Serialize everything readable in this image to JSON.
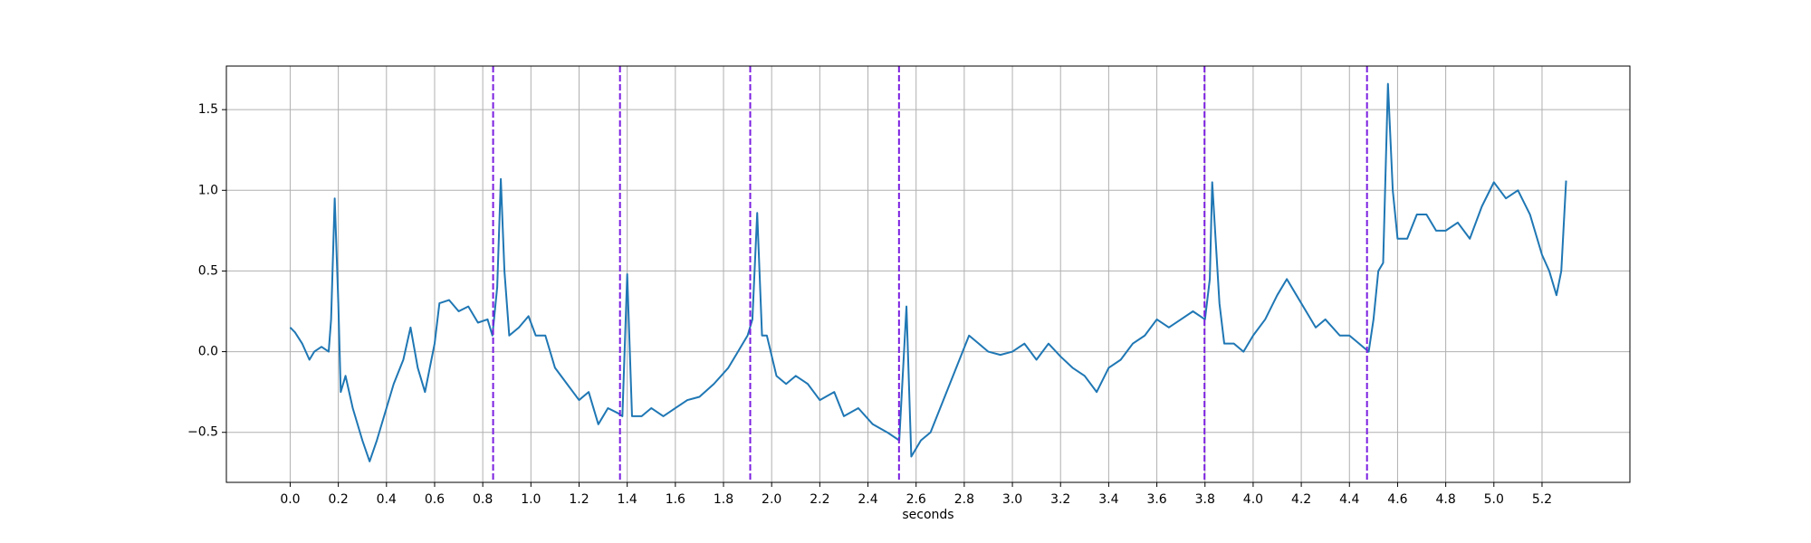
{
  "chart_data": {
    "type": "line",
    "xlabel": "seconds",
    "x": [
      0.0,
      0.02,
      0.05,
      0.08,
      0.1,
      0.13,
      0.16,
      0.17,
      0.185,
      0.2,
      0.21,
      0.23,
      0.26,
      0.3,
      0.33,
      0.36,
      0.4,
      0.43,
      0.47,
      0.5,
      0.53,
      0.56,
      0.6,
      0.62,
      0.66,
      0.7,
      0.74,
      0.78,
      0.82,
      0.84,
      0.86,
      0.875,
      0.89,
      0.91,
      0.95,
      0.99,
      1.02,
      1.06,
      1.1,
      1.15,
      1.2,
      1.24,
      1.28,
      1.32,
      1.36,
      1.38,
      1.4,
      1.42,
      1.46,
      1.5,
      1.55,
      1.6,
      1.65,
      1.7,
      1.76,
      1.82,
      1.86,
      1.9,
      1.92,
      1.94,
      1.96,
      1.98,
      2.02,
      2.06,
      2.1,
      2.15,
      2.2,
      2.26,
      2.3,
      2.36,
      2.42,
      2.48,
      2.53,
      2.56,
      2.58,
      2.62,
      2.66,
      2.7,
      2.74,
      2.78,
      2.82,
      2.86,
      2.9,
      2.95,
      3.0,
      3.05,
      3.1,
      3.15,
      3.2,
      3.25,
      3.3,
      3.35,
      3.4,
      3.45,
      3.5,
      3.55,
      3.6,
      3.65,
      3.7,
      3.75,
      3.8,
      3.82,
      3.83,
      3.86,
      3.88,
      3.92,
      3.96,
      4.0,
      4.05,
      4.1,
      4.14,
      4.18,
      4.22,
      4.26,
      4.3,
      4.36,
      4.4,
      4.44,
      4.48,
      4.5,
      4.52,
      4.54,
      4.56,
      4.58,
      4.6,
      4.64,
      4.68,
      4.72,
      4.76,
      4.8,
      4.85,
      4.9,
      4.95,
      5.0,
      5.05,
      5.1,
      5.15,
      5.2,
      5.23,
      5.26,
      5.28,
      5.3
    ],
    "series": [
      {
        "color": "#1f77b4",
        "values": [
          0.15,
          0.12,
          0.05,
          -0.05,
          0.0,
          0.03,
          0.0,
          0.2,
          0.95,
          0.3,
          -0.25,
          -0.15,
          -0.35,
          -0.55,
          -0.68,
          -0.55,
          -0.35,
          -0.2,
          -0.05,
          0.15,
          -0.1,
          -0.25,
          0.05,
          0.3,
          0.32,
          0.25,
          0.28,
          0.18,
          0.2,
          0.1,
          0.4,
          1.07,
          0.5,
          0.1,
          0.15,
          0.22,
          0.1,
          0.1,
          -0.1,
          -0.2,
          -0.3,
          -0.25,
          -0.45,
          -0.35,
          -0.38,
          -0.4,
          0.48,
          -0.4,
          -0.4,
          -0.35,
          -0.4,
          -0.35,
          -0.3,
          -0.28,
          -0.2,
          -0.1,
          0.0,
          0.1,
          0.2,
          0.86,
          0.1,
          0.1,
          -0.15,
          -0.2,
          -0.15,
          -0.2,
          -0.3,
          -0.25,
          -0.4,
          -0.35,
          -0.45,
          -0.5,
          -0.55,
          0.28,
          -0.65,
          -0.55,
          -0.5,
          -0.35,
          -0.2,
          -0.05,
          0.1,
          0.05,
          0.0,
          -0.02,
          0.0,
          0.05,
          -0.05,
          0.05,
          -0.03,
          -0.1,
          -0.15,
          -0.25,
          -0.1,
          -0.05,
          0.05,
          0.1,
          0.2,
          0.15,
          0.2,
          0.25,
          0.2,
          0.45,
          1.05,
          0.3,
          0.05,
          0.05,
          0.0,
          0.1,
          0.2,
          0.35,
          0.45,
          0.35,
          0.25,
          0.15,
          0.2,
          0.1,
          0.1,
          0.05,
          0.0,
          0.2,
          0.5,
          0.55,
          1.66,
          1.0,
          0.7,
          0.7,
          0.85,
          0.85,
          0.75,
          0.75,
          0.8,
          0.7,
          0.9,
          1.05,
          0.95,
          1.0,
          0.85,
          0.6,
          0.5,
          0.35,
          0.5,
          1.06
        ]
      }
    ],
    "vlines": [
      0.843,
      1.37,
      1.911,
      2.529,
      3.798,
      4.473
    ],
    "vline_color": "#7b1fe0",
    "xlim": [
      -0.265,
      5.565
    ],
    "ylim": [
      -0.81,
      1.77
    ],
    "xticks": [
      {
        "value": 0.0,
        "label": "0.0"
      },
      0.2,
      0.4,
      0.6,
      0.8,
      {
        "value": 1.0,
        "label": "1.0"
      },
      1.2,
      1.4,
      1.6,
      1.8,
      {
        "value": 2.0,
        "label": "2.0"
      },
      2.2,
      2.4,
      2.6,
      2.8,
      {
        "value": 3.0,
        "label": "3.0"
      },
      3.2,
      3.4,
      3.6,
      3.8,
      {
        "value": 4.0,
        "label": "4.0"
      },
      4.2,
      4.4,
      4.6,
      4.8,
      {
        "value": 5.0,
        "label": "5.0"
      },
      5.2
    ],
    "yticks": [
      {
        "value": -0.5,
        "label": "−0.5"
      },
      {
        "value": 0.0,
        "label": "0.0"
      },
      0.5,
      {
        "value": 1.0,
        "label": "1.0"
      },
      1.5
    ],
    "grid": true
  }
}
